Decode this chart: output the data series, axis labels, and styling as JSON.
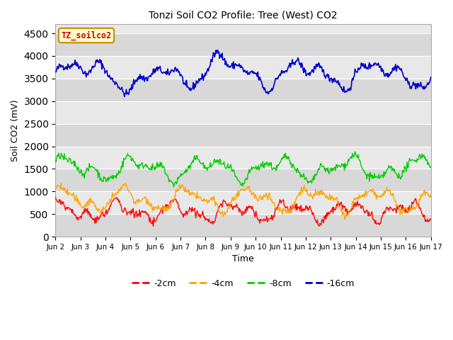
{
  "title": "Tonzi Soil CO2 Profile: Tree (West) CO2",
  "ylabel": "Soil CO2 (mV)",
  "xlabel": "Time",
  "ylim": [
    0,
    4700
  ],
  "yticks": [
    0,
    500,
    1000,
    1500,
    2000,
    2500,
    3000,
    3500,
    4000,
    4500
  ],
  "legend_box_label": "TZ_soilco2",
  "legend_box_color": "#FFFFCC",
  "legend_box_edge": "#CC8800",
  "legend_box_text_color": "#CC0000",
  "fig_bg_color": "#FFFFFF",
  "plot_bg_color": "#E8E8E8",
  "series": [
    {
      "label": "-2cm",
      "color": "#FF0000"
    },
    {
      "label": "-4cm",
      "color": "#FFA500"
    },
    {
      "label": "-8cm",
      "color": "#00CC00"
    },
    {
      "label": "-16cm",
      "color": "#0000CC"
    }
  ],
  "xtick_labels": [
    "Jun 2",
    "Jun 3",
    "Jun 4",
    "Jun 5",
    "Jun 6",
    "Jun 7",
    "Jun 8",
    "Jun 9",
    "Jun 10",
    "Jun 11",
    "Jun 12",
    "Jun 13",
    "Jun 14",
    "Jun 15",
    "Jun 16",
    "Jun 17"
  ],
  "band_colors": [
    "#D8D8D8",
    "#E8E8E8"
  ],
  "n_points": 600,
  "seed": 42
}
